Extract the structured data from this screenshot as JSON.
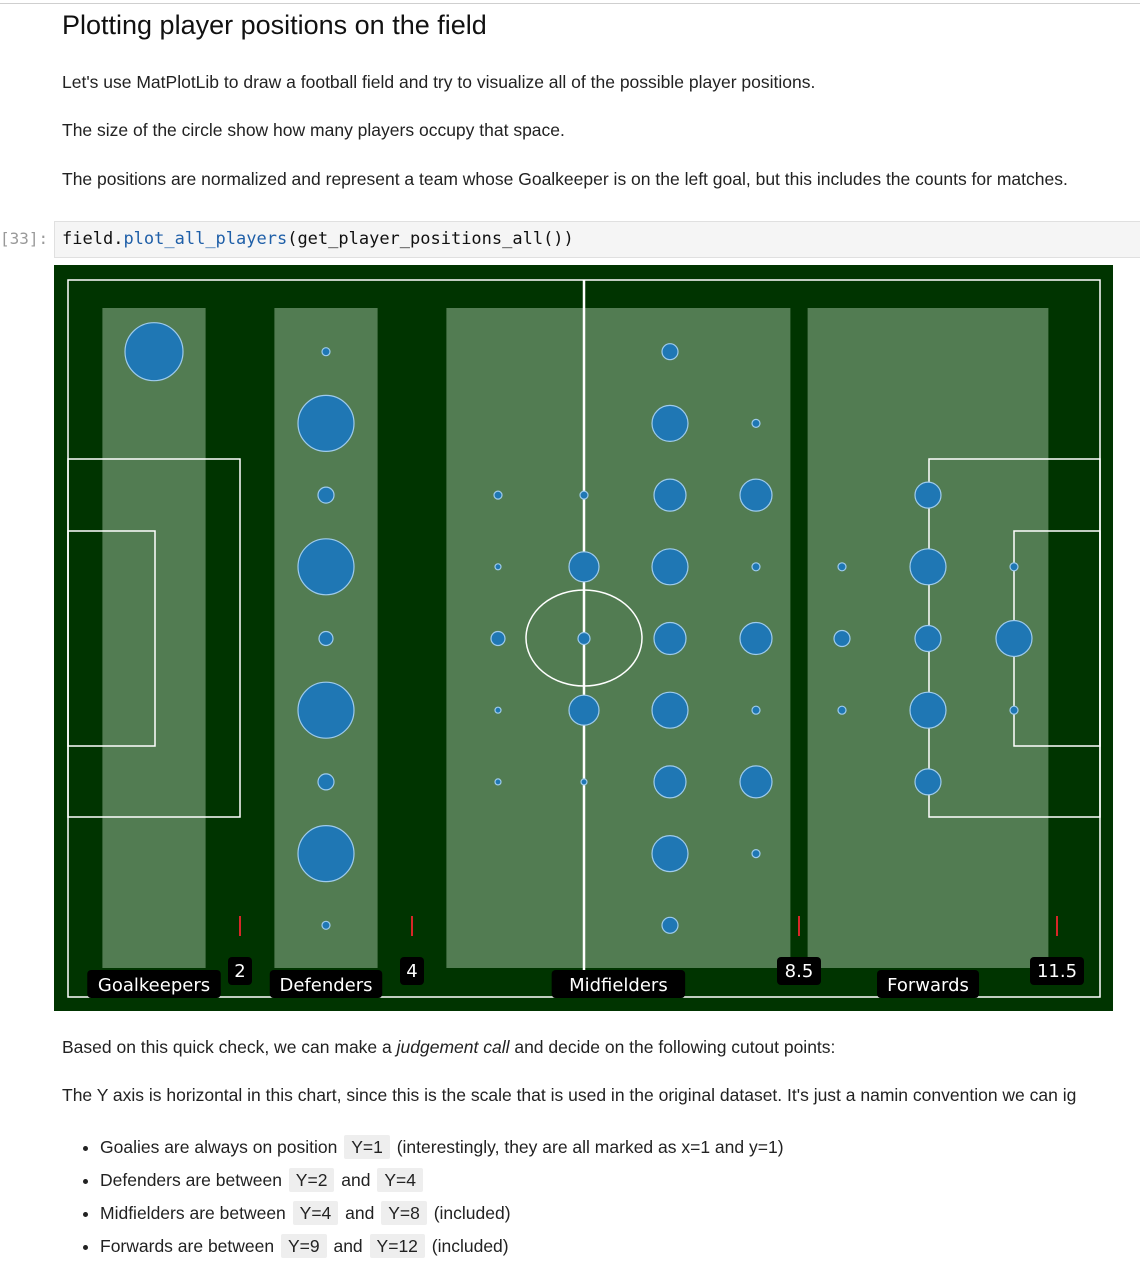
{
  "notebook": {
    "title": "Plotting player positions on the field",
    "intro_1": "Let's use MatPlotLib to draw a football field and try to visualize all of the possible player positions.",
    "intro_2": "The size of the circle show how many players occupy that space.",
    "intro_3": "The positions are normalized and represent a team whose Goalkeeper is on the left goal, but this includes the counts for matches.",
    "cell_prompt": "[33]:",
    "code": {
      "object": "field",
      "dot": ".",
      "method": "plot_all_players",
      "args": "(get_player_positions_all())"
    },
    "after_1_prefix": "Based on this quick check, we can make a ",
    "after_1_em": "judgement call",
    "after_1_suffix": " and decide on the following cutout points:",
    "after_2": "The Y axis is horizontal in this chart, since this is the scale that is used in the original dataset. It's just a namin convention we can ig",
    "bullets": [
      {
        "pre": "Goalies are always on position ",
        "c1": "Y=1",
        "mid": "",
        "c2": "",
        "post": " (interestingly, they are all marked as x=1 and y=1)"
      },
      {
        "pre": "Defenders are between ",
        "c1": "Y=2",
        "mid": " and ",
        "c2": "Y=4",
        "post": ""
      },
      {
        "pre": "Midfielders are between ",
        "c1": "Y=4",
        "mid": " and ",
        "c2": "Y=8",
        "post": " (included)"
      },
      {
        "pre": "Forwards are between ",
        "c1": "Y=9",
        "mid": " and ",
        "c2": "Y=12",
        "post": " (included)"
      }
    ]
  },
  "chart_data": {
    "type": "scatter",
    "description_note": "Bubble plot on a football pitch; bubble area encodes player count.",
    "x_domain": [
      0,
      12
    ],
    "y_domain": [
      0,
      10
    ],
    "zones": [
      {
        "label": "Goalkeepers",
        "x_from": 0.4,
        "x_to": 1.6
      },
      {
        "label": "Defenders",
        "x_from": 2.4,
        "x_to": 3.6
      },
      {
        "label": "Midfielders",
        "x_from": 4.4,
        "x_to": 8.4
      },
      {
        "label": "Forwards",
        "x_from": 8.6,
        "x_to": 11.4
      }
    ],
    "cutoffs": [
      {
        "label": "2",
        "x": 2
      },
      {
        "label": "4",
        "x": 4
      },
      {
        "label": "8.5",
        "x": 8.5
      },
      {
        "label": "11.5",
        "x": 11.5
      }
    ],
    "points": [
      {
        "x": 1,
        "y": 9,
        "size": 29
      },
      {
        "x": 3,
        "y": 9,
        "size": 4
      },
      {
        "x": 3,
        "y": 8,
        "size": 28
      },
      {
        "x": 3,
        "y": 7,
        "size": 8
      },
      {
        "x": 3,
        "y": 6,
        "size": 28
      },
      {
        "x": 3,
        "y": 5,
        "size": 7
      },
      {
        "x": 3,
        "y": 4,
        "size": 28
      },
      {
        "x": 3,
        "y": 3,
        "size": 8
      },
      {
        "x": 3,
        "y": 2,
        "size": 28
      },
      {
        "x": 3,
        "y": 1,
        "size": 4
      },
      {
        "x": 5,
        "y": 7,
        "size": 4
      },
      {
        "x": 5,
        "y": 6,
        "size": 3
      },
      {
        "x": 5,
        "y": 5,
        "size": 7
      },
      {
        "x": 5,
        "y": 4,
        "size": 3
      },
      {
        "x": 5,
        "y": 3,
        "size": 3
      },
      {
        "x": 6,
        "y": 7,
        "size": 4
      },
      {
        "x": 6,
        "y": 6,
        "size": 15
      },
      {
        "x": 6,
        "y": 5,
        "size": 6
      },
      {
        "x": 6,
        "y": 4,
        "size": 15
      },
      {
        "x": 6,
        "y": 3,
        "size": 3
      },
      {
        "x": 7,
        "y": 9,
        "size": 8
      },
      {
        "x": 7,
        "y": 8,
        "size": 18
      },
      {
        "x": 7,
        "y": 7,
        "size": 16
      },
      {
        "x": 7,
        "y": 6,
        "size": 18
      },
      {
        "x": 7,
        "y": 5,
        "size": 16
      },
      {
        "x": 7,
        "y": 4,
        "size": 18
      },
      {
        "x": 7,
        "y": 3,
        "size": 16
      },
      {
        "x": 7,
        "y": 2,
        "size": 18
      },
      {
        "x": 7,
        "y": 1,
        "size": 8
      },
      {
        "x": 8,
        "y": 8,
        "size": 4
      },
      {
        "x": 8,
        "y": 7,
        "size": 16
      },
      {
        "x": 8,
        "y": 6,
        "size": 4
      },
      {
        "x": 8,
        "y": 5,
        "size": 16
      },
      {
        "x": 8,
        "y": 4,
        "size": 4
      },
      {
        "x": 8,
        "y": 3,
        "size": 16
      },
      {
        "x": 8,
        "y": 2,
        "size": 4
      },
      {
        "x": 9,
        "y": 6,
        "size": 4
      },
      {
        "x": 9,
        "y": 5,
        "size": 8
      },
      {
        "x": 9,
        "y": 4,
        "size": 4
      },
      {
        "x": 10,
        "y": 7,
        "size": 13
      },
      {
        "x": 10,
        "y": 6,
        "size": 18
      },
      {
        "x": 10,
        "y": 5,
        "size": 13
      },
      {
        "x": 10,
        "y": 4,
        "size": 18
      },
      {
        "x": 10,
        "y": 3,
        "size": 13
      },
      {
        "x": 11,
        "y": 6,
        "size": 4
      },
      {
        "x": 11,
        "y": 5,
        "size": 18
      },
      {
        "x": 11,
        "y": 4,
        "size": 4
      }
    ],
    "colors": {
      "pitch": "#003400",
      "zone": "#527c52",
      "bubble": "#1f77b4",
      "lines": "#ffffff",
      "cutoff_tick": "#d62728",
      "label_box": "#000000"
    },
    "grid": false
  }
}
